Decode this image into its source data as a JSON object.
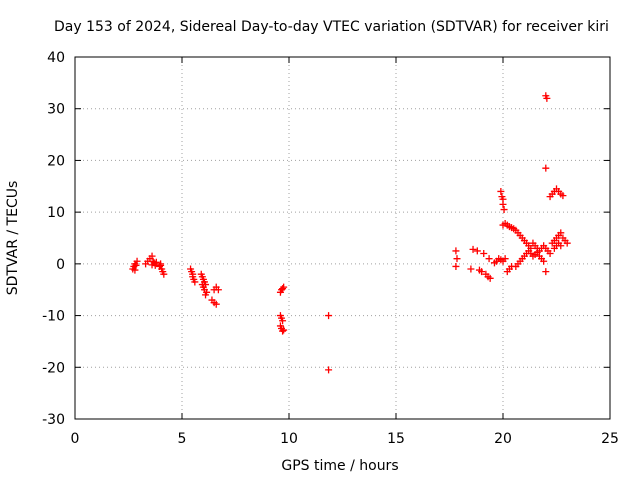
{
  "chart_data": {
    "type": "scatter",
    "title": "Day 153 of 2024, Sidereal Day-to-day VTEC variation (SDTVAR) for receiver kiri",
    "xlabel": "GPS time / hours",
    "ylabel": "SDTVAR / TECUs",
    "xlim": [
      0,
      25
    ],
    "ylim": [
      -30,
      40
    ],
    "xticks": [
      "0",
      "5",
      "10",
      "15",
      "20",
      "25"
    ],
    "yticks": [
      "-30",
      "-20",
      "-10",
      "0",
      "10",
      "20",
      "30",
      "40"
    ],
    "grid": true,
    "marker": "+",
    "color": "#ff0000",
    "points": [
      [
        2.7,
        -1.0
      ],
      [
        2.75,
        -0.5
      ],
      [
        2.8,
        0.0
      ],
      [
        2.85,
        -0.3
      ],
      [
        2.9,
        0.5
      ],
      [
        2.8,
        -1.2
      ],
      [
        3.3,
        0.0
      ],
      [
        3.4,
        0.5
      ],
      [
        3.5,
        1.0
      ],
      [
        3.6,
        1.5
      ],
      [
        3.65,
        0.5
      ],
      [
        3.7,
        0.2
      ],
      [
        3.75,
        -0.3
      ],
      [
        3.8,
        0.3
      ],
      [
        3.6,
        -0.2
      ],
      [
        3.95,
        -0.5
      ],
      [
        4.0,
        0.0
      ],
      [
        4.05,
        -1.0
      ],
      [
        4.1,
        -1.5
      ],
      [
        4.15,
        -2.0
      ],
      [
        4.0,
        -0.3
      ],
      [
        5.4,
        -1.0
      ],
      [
        5.45,
        -1.5
      ],
      [
        5.5,
        -2.0
      ],
      [
        5.5,
        -2.5
      ],
      [
        5.55,
        -3.0
      ],
      [
        5.6,
        -3.5
      ],
      [
        5.9,
        -2.0
      ],
      [
        5.95,
        -2.5
      ],
      [
        6.0,
        -3.0
      ],
      [
        6.05,
        -3.5
      ],
      [
        6.1,
        -4.0
      ],
      [
        6.0,
        -4.5
      ],
      [
        6.05,
        -5.0
      ],
      [
        6.1,
        -6.0
      ],
      [
        6.15,
        -5.5
      ],
      [
        5.95,
        -4.0
      ],
      [
        6.4,
        -7.0
      ],
      [
        6.5,
        -7.5
      ],
      [
        6.6,
        -7.8
      ],
      [
        6.5,
        -5.0
      ],
      [
        6.6,
        -4.5
      ],
      [
        6.7,
        -5.0
      ],
      [
        9.6,
        -10.0
      ],
      [
        9.65,
        -10.5
      ],
      [
        9.7,
        -11.0
      ],
      [
        9.6,
        -12.0
      ],
      [
        9.65,
        -12.5
      ],
      [
        9.7,
        -13.0
      ],
      [
        9.75,
        -12.8
      ],
      [
        9.6,
        -5.5
      ],
      [
        9.65,
        -5.0
      ],
      [
        9.7,
        -4.8
      ],
      [
        9.75,
        -4.5
      ],
      [
        11.85,
        -10.0
      ],
      [
        11.85,
        -20.5
      ],
      [
        17.8,
        2.5
      ],
      [
        17.85,
        1.0
      ],
      [
        17.8,
        -0.5
      ],
      [
        18.5,
        -1.0
      ],
      [
        18.6,
        2.8
      ],
      [
        18.8,
        2.5
      ],
      [
        18.9,
        -1.2
      ],
      [
        19.0,
        -1.5
      ],
      [
        19.1,
        2.0
      ],
      [
        19.2,
        -2.0
      ],
      [
        19.3,
        -2.5
      ],
      [
        19.4,
        -2.8
      ],
      [
        19.35,
        1.0
      ],
      [
        19.6,
        0.2
      ],
      [
        19.7,
        0.5
      ],
      [
        19.8,
        1.0
      ],
      [
        19.9,
        0.8
      ],
      [
        20.0,
        0.5
      ],
      [
        20.1,
        1.0
      ],
      [
        20.2,
        -1.5
      ],
      [
        20.3,
        -1.0
      ],
      [
        20.4,
        -0.5
      ],
      [
        19.9,
        14.0
      ],
      [
        19.95,
        13.0
      ],
      [
        20.0,
        12.5
      ],
      [
        20.0,
        11.5
      ],
      [
        20.05,
        10.5
      ],
      [
        20.0,
        7.5
      ],
      [
        20.1,
        7.8
      ],
      [
        20.2,
        7.5
      ],
      [
        20.3,
        7.2
      ],
      [
        20.4,
        7.0
      ],
      [
        20.5,
        6.8
      ],
      [
        20.6,
        6.5
      ],
      [
        20.7,
        6.0
      ],
      [
        20.8,
        5.5
      ],
      [
        20.9,
        5.0
      ],
      [
        21.0,
        4.5
      ],
      [
        21.1,
        4.0
      ],
      [
        21.2,
        3.5
      ],
      [
        21.3,
        3.0
      ],
      [
        20.6,
        -0.5
      ],
      [
        20.7,
        0.0
      ],
      [
        20.8,
        0.5
      ],
      [
        20.9,
        1.0
      ],
      [
        21.0,
        1.5
      ],
      [
        21.1,
        2.0
      ],
      [
        21.2,
        2.5
      ],
      [
        21.3,
        2.0
      ],
      [
        21.4,
        1.5
      ],
      [
        21.5,
        1.8
      ],
      [
        21.6,
        2.2
      ],
      [
        21.7,
        2.5
      ],
      [
        21.8,
        3.0
      ],
      [
        21.9,
        3.5
      ],
      [
        22.0,
        3.0
      ],
      [
        22.1,
        2.5
      ],
      [
        22.2,
        2.0
      ],
      [
        21.4,
        4.0
      ],
      [
        21.5,
        3.5
      ],
      [
        21.6,
        3.0
      ],
      [
        21.7,
        1.5
      ],
      [
        21.8,
        1.0
      ],
      [
        21.9,
        0.5
      ],
      [
        22.0,
        32.5
      ],
      [
        22.05,
        32.0
      ],
      [
        22.0,
        18.5
      ],
      [
        22.0,
        -1.5
      ],
      [
        22.2,
        13.0
      ],
      [
        22.3,
        13.5
      ],
      [
        22.4,
        14.0
      ],
      [
        22.5,
        14.5
      ],
      [
        22.6,
        14.0
      ],
      [
        22.7,
        13.5
      ],
      [
        22.8,
        13.2
      ],
      [
        22.3,
        4.0
      ],
      [
        22.4,
        4.5
      ],
      [
        22.5,
        5.0
      ],
      [
        22.6,
        5.5
      ],
      [
        22.7,
        6.0
      ],
      [
        22.8,
        5.0
      ],
      [
        22.9,
        4.5
      ],
      [
        23.0,
        4.0
      ],
      [
        22.4,
        3.0
      ],
      [
        22.5,
        3.5
      ],
      [
        22.6,
        4.0
      ],
      [
        22.7,
        3.5
      ]
    ]
  }
}
